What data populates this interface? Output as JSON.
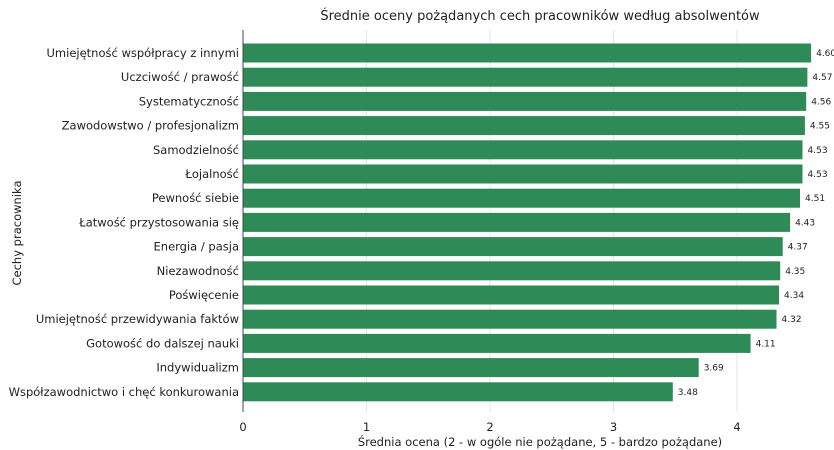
{
  "chart_data": {
    "type": "bar",
    "orientation": "horizontal",
    "title": "Średnie oceny pożądanych cech pracowników według absolwentów",
    "xlabel": "Średnia ocena (2 - w ogóle nie pożądane, 5 - bardzo pożądane)",
    "ylabel": "Cechy pracownika",
    "xlim": [
      0,
      4.83
    ],
    "xticks": [
      "0",
      "1",
      "2",
      "3",
      "4"
    ],
    "grid": true,
    "bar_color": "#2e8b57",
    "categories": [
      "Umiejętność współpracy z innymi",
      "Uczciwość / prawość",
      "Systematyczność",
      "Zawodowstwo / profesjonalizm",
      "Samodzielność",
      "Łojalność",
      "Pewność siebie",
      "Łatwość przystosowania się",
      "Energia / pasja",
      "Niezawodność",
      "Poświęcenie",
      "Umiejętność przewidywania faktów",
      "Gotowość do dalszej nauki",
      "Indywidualizm",
      "Współzawodnictwo i chęć konkurowania"
    ],
    "values": [
      4.6,
      4.57,
      4.56,
      4.55,
      4.53,
      4.53,
      4.51,
      4.43,
      4.37,
      4.35,
      4.34,
      4.32,
      4.11,
      3.69,
      3.48
    ],
    "value_labels": [
      "4.60",
      "4.57",
      "4.56",
      "4.55",
      "4.53",
      "4.53",
      "4.51",
      "4.43",
      "4.37",
      "4.35",
      "4.34",
      "4.32",
      "4.11",
      "3.69",
      "3.48"
    ]
  }
}
